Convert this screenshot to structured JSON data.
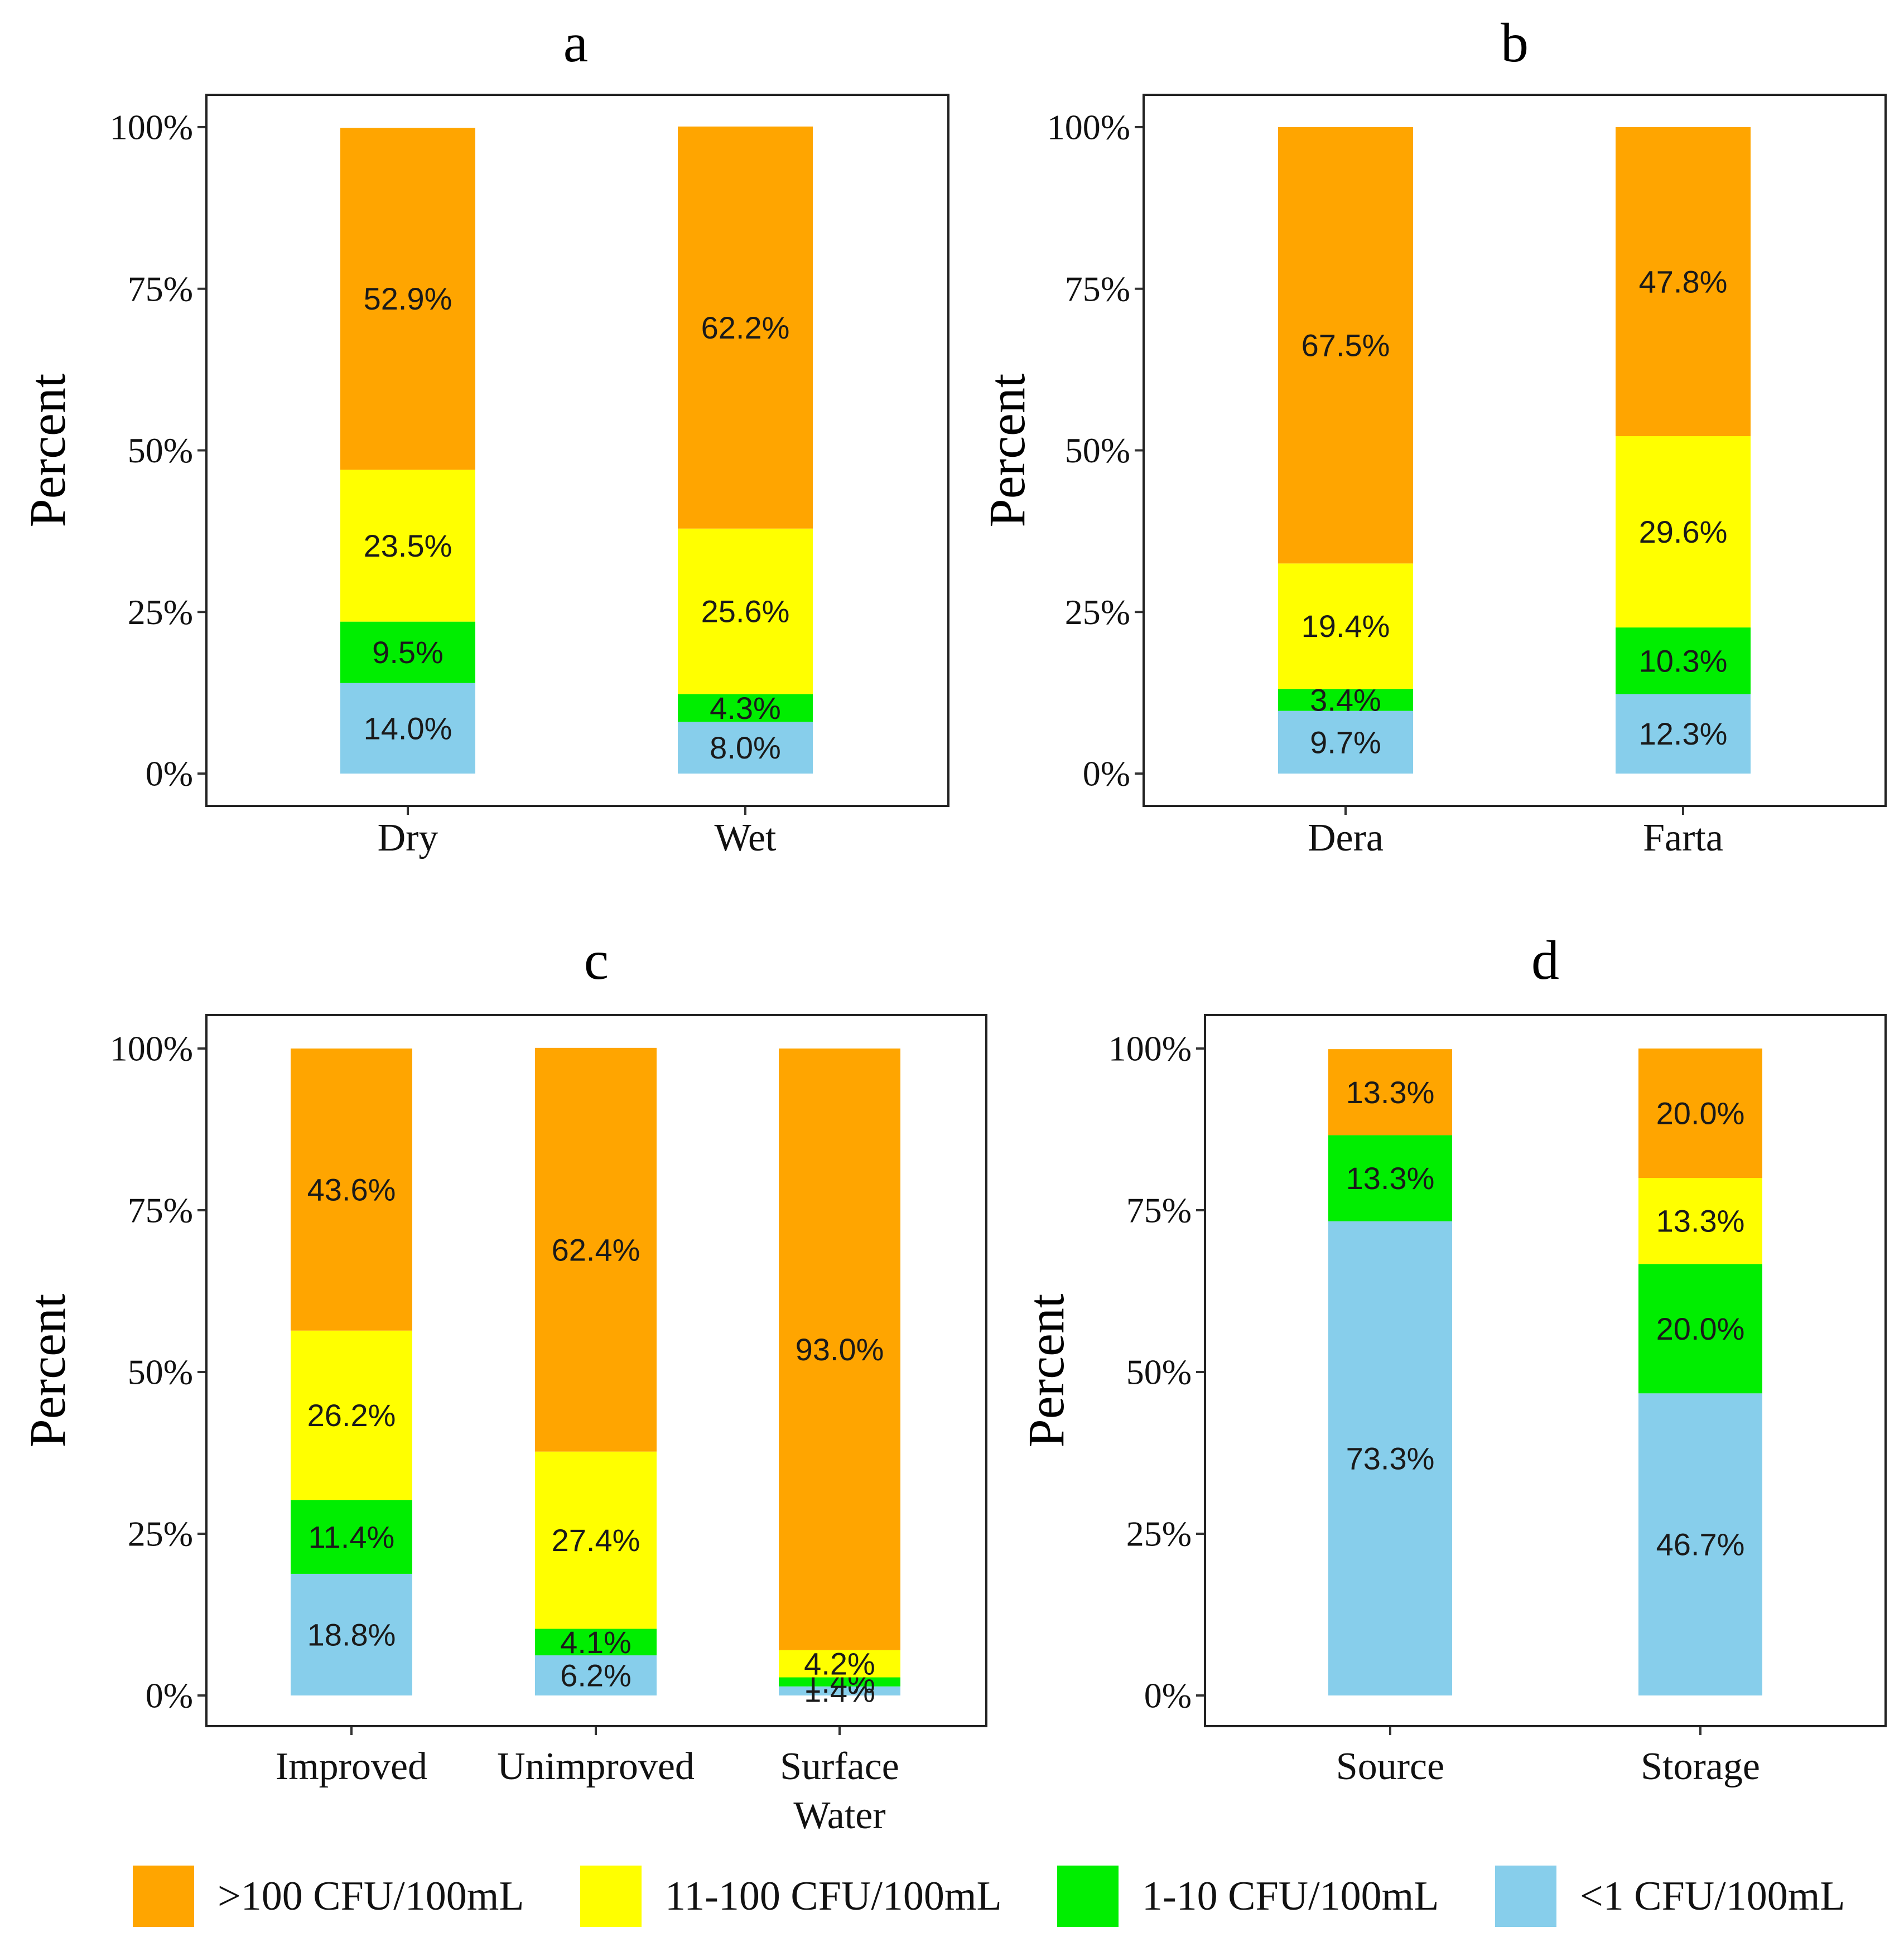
{
  "colors": {
    "gt100": "#FFA500",
    "r11_100": "#FFFF00",
    "r1_10": "#00EE00",
    "lt1": "#87CEEB"
  },
  "legend": [
    {
      "key": "gt100",
      "label": ">100 CFU/100mL"
    },
    {
      "key": "r11_100",
      "label": "11-100 CFU/100mL"
    },
    {
      "key": "r1_10",
      "label": "1-10 CFU/100mL"
    },
    {
      "key": "lt1",
      "label": "<1 CFU/100mL"
    }
  ],
  "chart_data": [
    {
      "type": "bar",
      "stacked": true,
      "title": "a",
      "ylabel": "Percent",
      "ylim": [
        0,
        100
      ],
      "yticks": [
        "0%",
        "25%",
        "50%",
        "75%",
        "100%"
      ],
      "categories": [
        [
          "Dry"
        ],
        [
          "Wet"
        ]
      ],
      "series": [
        {
          "key": "lt1",
          "values": [
            14.0,
            8.0
          ],
          "labels": [
            "14.0%",
            "8.0%"
          ]
        },
        {
          "key": "r1_10",
          "values": [
            9.5,
            4.3
          ],
          "labels": [
            "9.5%",
            "4.3%"
          ]
        },
        {
          "key": "r11_100",
          "values": [
            23.5,
            25.6
          ],
          "labels": [
            "23.5%",
            "25.6%"
          ]
        },
        {
          "key": "gt100",
          "values": [
            52.9,
            62.2
          ],
          "labels": [
            "52.9%",
            "62.2%"
          ]
        }
      ]
    },
    {
      "type": "bar",
      "stacked": true,
      "title": "b",
      "ylabel": "Percent",
      "ylim": [
        0,
        100
      ],
      "yticks": [
        "0%",
        "25%",
        "50%",
        "75%",
        "100%"
      ],
      "categories": [
        [
          "Dera"
        ],
        [
          "Farta"
        ]
      ],
      "series": [
        {
          "key": "lt1",
          "values": [
            9.7,
            12.3
          ],
          "labels": [
            "9.7%",
            "12.3%"
          ]
        },
        {
          "key": "r1_10",
          "values": [
            3.4,
            10.3
          ],
          "labels": [
            "3.4%",
            "10.3%"
          ]
        },
        {
          "key": "r11_100",
          "values": [
            19.4,
            29.6
          ],
          "labels": [
            "19.4%",
            "29.6%"
          ]
        },
        {
          "key": "gt100",
          "values": [
            67.5,
            47.8
          ],
          "labels": [
            "67.5%",
            "47.8%"
          ]
        }
      ]
    },
    {
      "type": "bar",
      "stacked": true,
      "title": "c",
      "ylabel": "Percent",
      "ylim": [
        0,
        100
      ],
      "yticks": [
        "0%",
        "25%",
        "50%",
        "75%",
        "100%"
      ],
      "categories": [
        [
          "Improved"
        ],
        [
          "Unimproved"
        ],
        [
          "Surface",
          "Water"
        ]
      ],
      "series": [
        {
          "key": "lt1",
          "values": [
            18.8,
            6.2,
            1.4
          ],
          "labels": [
            "18.8%",
            "6.2%",
            "1.4%"
          ]
        },
        {
          "key": "r1_10",
          "values": [
            11.4,
            4.1,
            1.4
          ],
          "labels": [
            "11.4%",
            "4.1%",
            "1.4%"
          ]
        },
        {
          "key": "r11_100",
          "values": [
            26.2,
            27.4,
            4.2
          ],
          "labels": [
            "26.2%",
            "27.4%",
            "4.2%"
          ]
        },
        {
          "key": "gt100",
          "values": [
            43.6,
            62.4,
            93.0
          ],
          "labels": [
            "43.6%",
            "62.4%",
            "93.0%"
          ]
        }
      ]
    },
    {
      "type": "bar",
      "stacked": true,
      "title": "d",
      "ylabel": "Percent",
      "ylim": [
        0,
        100
      ],
      "yticks": [
        "0%",
        "25%",
        "50%",
        "75%",
        "100%"
      ],
      "categories": [
        [
          "Source"
        ],
        [
          "Storage"
        ]
      ],
      "series": [
        {
          "key": "lt1",
          "values": [
            73.3,
            46.7
          ],
          "labels": [
            "73.3%",
            "46.7%"
          ]
        },
        {
          "key": "r1_10",
          "values": [
            13.3,
            20.0
          ],
          "labels": [
            "13.3%",
            "20.0%"
          ]
        },
        {
          "key": "r11_100",
          "values": [
            0,
            13.3
          ],
          "labels": [
            "",
            "13.3%"
          ]
        },
        {
          "key": "gt100",
          "values": [
            13.3,
            20.0
          ],
          "labels": [
            "13.3%",
            "20.0%"
          ]
        }
      ]
    }
  ]
}
